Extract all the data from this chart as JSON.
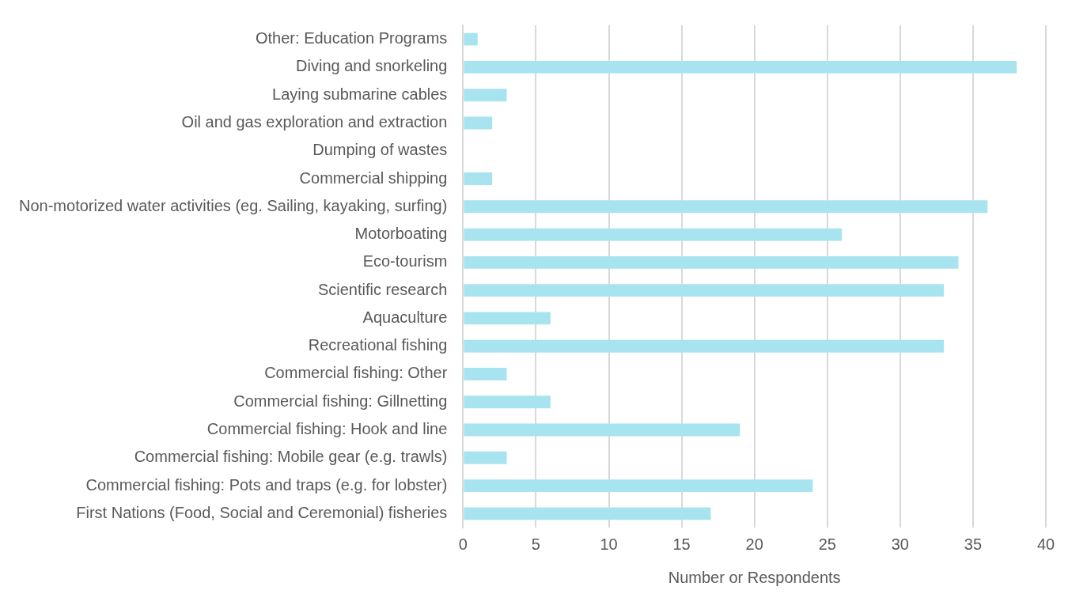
{
  "chart_data": {
    "type": "bar",
    "orientation": "horizontal",
    "xlabel": "Number or Respondents",
    "categories": [
      "Other: Education Programs",
      "Diving and snorkeling",
      "Laying submarine cables",
      "Oil and gas exploration and extraction",
      "Dumping of wastes",
      "Commercial shipping",
      "Non-motorized water activities (eg. Sailing, kayaking, surfing)",
      "Motorboating",
      "Eco-tourism",
      "Scientific research",
      "Aquaculture",
      "Recreational fishing",
      "Commercial fishing: Other",
      "Commercial fishing: Gillnetting",
      "Commercial fishing: Hook and line",
      "Commercial fishing: Mobile gear (e.g. trawls)",
      "Commercial fishing: Pots and traps (e.g. for lobster)",
      "First Nations (Food, Social and Ceremonial) fisheries"
    ],
    "values": [
      1,
      38,
      3,
      2,
      0,
      2,
      36,
      26,
      34,
      33,
      6,
      33,
      3,
      6,
      19,
      3,
      24,
      17
    ],
    "color": "#a8e3f0",
    "xlim": [
      0,
      40
    ],
    "xticks": [
      0,
      5,
      10,
      15,
      20,
      25,
      30,
      35,
      40
    ],
    "grid": "x",
    "legend": false
  }
}
